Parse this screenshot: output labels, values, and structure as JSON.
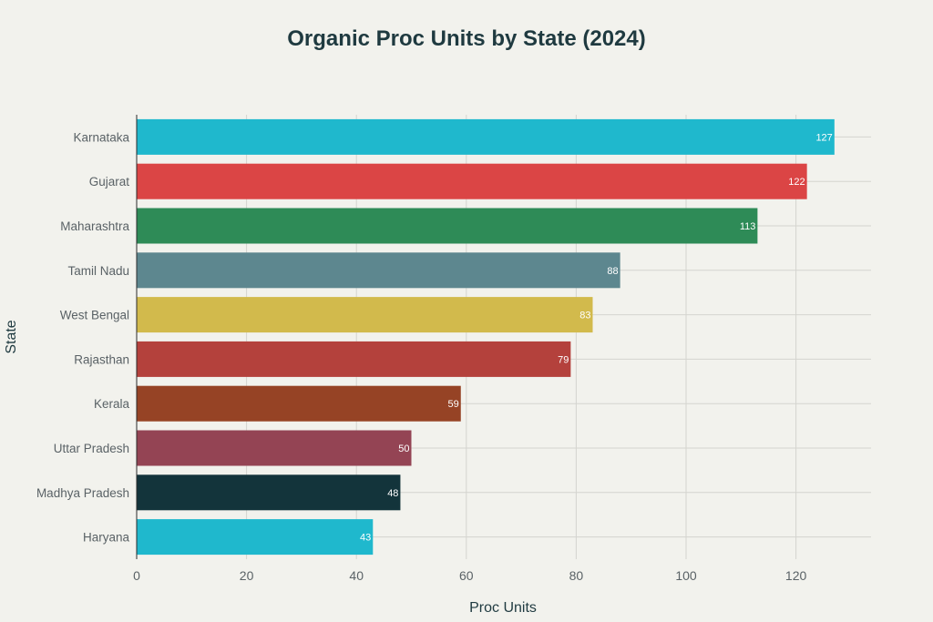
{
  "chart_data": {
    "type": "bar",
    "orientation": "horizontal",
    "title": "Organic Proc Units by State (2024)",
    "xlabel": "Proc Units",
    "ylabel": "State",
    "xlim": [
      0,
      134
    ],
    "x_ticks": [
      0,
      20,
      40,
      60,
      80,
      100,
      120
    ],
    "grid": true,
    "categories": [
      "Karnataka",
      "Gujarat",
      "Maharashtra",
      "Tamil Nadu",
      "West Bengal",
      "Rajasthan",
      "Kerala",
      "Uttar Pradesh",
      "Madhya Pradesh",
      "Haryana"
    ],
    "values": [
      127,
      122,
      113,
      88,
      83,
      79,
      59,
      50,
      48,
      43
    ],
    "colors": [
      "#1fb8cd",
      "#db4545",
      "#2e8b57",
      "#5d878f",
      "#d2ba4c",
      "#b4413c",
      "#964325",
      "#944454",
      "#13343b",
      "#1fb8cd"
    ]
  }
}
